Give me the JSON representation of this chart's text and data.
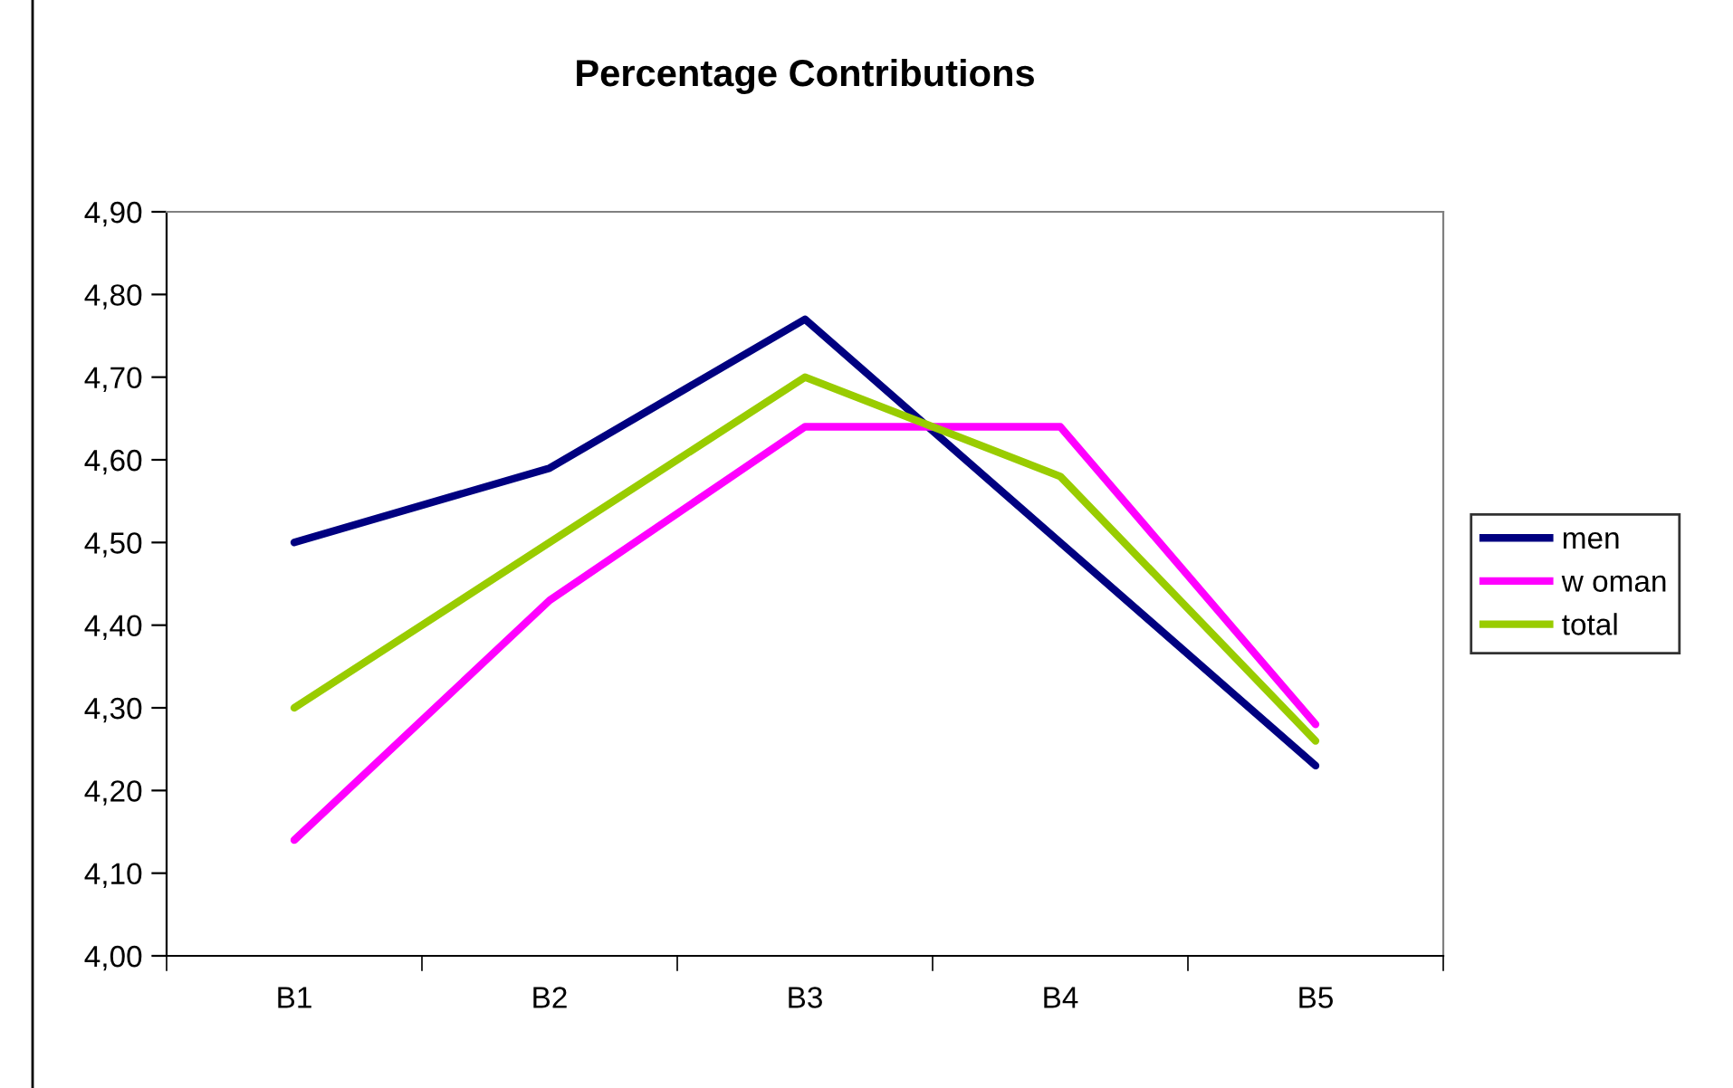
{
  "chart_data": {
    "type": "line",
    "title": "Percentage Contributions",
    "categories": [
      "B1",
      "B2",
      "B3",
      "B4",
      "B5"
    ],
    "series": [
      {
        "name": "men",
        "color": "#000080",
        "values": [
          4.5,
          4.59,
          4.77,
          4.5,
          4.23
        ]
      },
      {
        "name": "w oman",
        "color": "#ff00ff",
        "values": [
          4.14,
          4.43,
          4.64,
          4.64,
          4.28
        ]
      },
      {
        "name": "total",
        "color": "#99cc00",
        "values": [
          4.3,
          4.5,
          4.7,
          4.58,
          4.26
        ]
      }
    ],
    "ylim": [
      4.0,
      4.9
    ],
    "yticks": [
      {
        "value": 4.0,
        "label": "4,00"
      },
      {
        "value": 4.1,
        "label": "4,10"
      },
      {
        "value": 4.2,
        "label": "4,20"
      },
      {
        "value": 4.3,
        "label": "4,30"
      },
      {
        "value": 4.4,
        "label": "4,40"
      },
      {
        "value": 4.5,
        "label": "4,50"
      },
      {
        "value": 4.6,
        "label": "4,60"
      },
      {
        "value": 4.7,
        "label": "4,70"
      },
      {
        "value": 4.8,
        "label": "4,80"
      },
      {
        "value": 4.9,
        "label": "4,90"
      }
    ],
    "grid": false,
    "legend": "right",
    "marker": "none",
    "line_style": "solid"
  }
}
